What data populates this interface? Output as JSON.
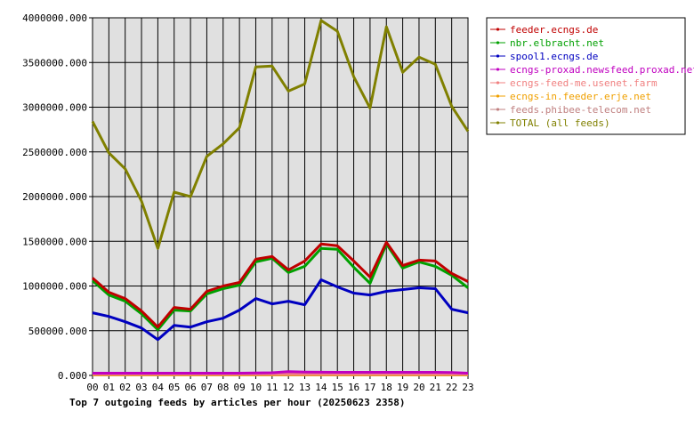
{
  "chart_data": {
    "type": "line",
    "title": "Top 7 outgoing feeds by articles per hour (20250623 2358)",
    "xlabel": "",
    "ylabel": "",
    "categories": [
      "00",
      "01",
      "02",
      "03",
      "04",
      "05",
      "06",
      "07",
      "08",
      "09",
      "10",
      "11",
      "12",
      "13",
      "14",
      "15",
      "16",
      "17",
      "18",
      "19",
      "20",
      "21",
      "22",
      "23"
    ],
    "ylim": [
      0,
      4000000
    ],
    "yticks": [
      "0.000",
      "500000.000",
      "1000000.000",
      "1500000.000",
      "2000000.000",
      "2500000.000",
      "3000000.000",
      "3500000.000",
      "4000000.000"
    ],
    "grid": true,
    "legend_position": "right",
    "series": [
      {
        "name": "feeder.ecngs.de",
        "color": "#c00000",
        "values": [
          1090000,
          930000,
          860000,
          720000,
          540000,
          760000,
          740000,
          940000,
          1000000,
          1040000,
          1300000,
          1330000,
          1180000,
          1280000,
          1470000,
          1450000,
          1280000,
          1100000,
          1490000,
          1230000,
          1290000,
          1280000,
          1140000,
          1050000
        ]
      },
      {
        "name": "nbr.elbracht.net",
        "color": "#00a000",
        "values": [
          1060000,
          900000,
          830000,
          690000,
          510000,
          730000,
          720000,
          910000,
          970000,
          1010000,
          1270000,
          1310000,
          1150000,
          1220000,
          1420000,
          1410000,
          1210000,
          1030000,
          1470000,
          1200000,
          1270000,
          1220000,
          1120000,
          980000
        ]
      },
      {
        "name": "spool1.ecngs.de",
        "color": "#0000c0",
        "values": [
          700000,
          660000,
          600000,
          530000,
          400000,
          560000,
          540000,
          600000,
          640000,
          730000,
          860000,
          800000,
          830000,
          790000,
          1070000,
          990000,
          920000,
          900000,
          940000,
          960000,
          980000,
          970000,
          740000,
          700000
        ]
      },
      {
        "name": "ecngs-proxad.newsfeed.proxad.net",
        "color": "#c000c0",
        "values": [
          25000,
          25000,
          25000,
          25000,
          25000,
          25000,
          25000,
          25000,
          25000,
          25000,
          28000,
          30000,
          42000,
          38000,
          36000,
          35000,
          35000,
          35000,
          35000,
          35000,
          35000,
          35000,
          33000,
          25000
        ]
      },
      {
        "name": "ecngs-feed-me.usenet.farm",
        "color": "#f08080",
        "values": [
          15000,
          15000,
          15000,
          15000,
          15000,
          15000,
          15000,
          15000,
          15000,
          15000,
          15000,
          15000,
          15000,
          15000,
          15000,
          15000,
          15000,
          15000,
          15000,
          15000,
          15000,
          15000,
          15000,
          15000
        ]
      },
      {
        "name": "ecngs-in.feeder.erje.net",
        "color": "#f0a000",
        "values": [
          8000,
          8000,
          8000,
          8000,
          8000,
          8000,
          8000,
          8000,
          8000,
          8000,
          8000,
          8000,
          8000,
          8000,
          8000,
          8000,
          8000,
          8000,
          8000,
          8000,
          8000,
          8000,
          8000,
          8000
        ]
      },
      {
        "name": "feeds.phibee-telecom.net",
        "color": "#c08080",
        "values": [
          5000,
          5000,
          5000,
          5000,
          5000,
          5000,
          5000,
          5000,
          5000,
          5000,
          5000,
          5000,
          5000,
          5000,
          5000,
          5000,
          5000,
          5000,
          5000,
          5000,
          5000,
          5000,
          5000,
          5000
        ]
      },
      {
        "name": "TOTAL (all feeds)",
        "color": "#808000",
        "values": [
          2840000,
          2490000,
          2310000,
          1950000,
          1420000,
          2050000,
          2000000,
          2450000,
          2590000,
          2770000,
          3450000,
          3460000,
          3180000,
          3260000,
          3970000,
          3850000,
          3340000,
          2990000,
          3900000,
          3390000,
          3560000,
          3480000,
          3010000,
          2730000
        ]
      }
    ]
  }
}
